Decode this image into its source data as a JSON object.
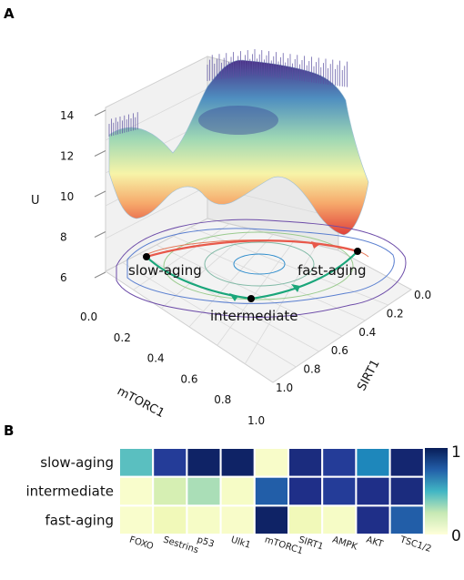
{
  "panel_a": {
    "letter": "A",
    "z_label": "U",
    "x_label": "mTORC1",
    "y_label": "SIRT1",
    "z_ticks": [
      "6",
      "8",
      "10",
      "12",
      "14"
    ],
    "x_ticks": [
      "0.0",
      "0.2",
      "0.4",
      "0.6",
      "0.8",
      "1.0"
    ],
    "y_ticks": [
      "0.0",
      "0.2",
      "0.4",
      "0.6",
      "0.8",
      "1.0"
    ],
    "states": [
      {
        "label": "slow-aging"
      },
      {
        "label": "intermediate"
      },
      {
        "label": "fast-aging"
      }
    ]
  },
  "panel_b": {
    "letter": "B",
    "colorbar_max": "1",
    "colorbar_min": "0"
  },
  "chart_data": [
    {
      "type": "surface",
      "title": "",
      "xlabel": "mTORC1",
      "ylabel": "SIRT1",
      "zlabel": "U",
      "xlim": [
        0.0,
        1.0
      ],
      "ylim": [
        0.0,
        1.0
      ],
      "zlim": [
        6,
        14
      ],
      "colormap": "YlGnBu",
      "states": [
        {
          "name": "slow-aging",
          "mTORC1": 0.0,
          "SIRT1": 1.0
        },
        {
          "name": "intermediate",
          "mTORC1": 1.0,
          "SIRT1": 1.0
        },
        {
          "name": "fast-aging",
          "mTORC1": 1.0,
          "SIRT1": 0.0
        }
      ]
    },
    {
      "type": "heatmap",
      "title": "",
      "rows": [
        "slow-aging",
        "intermediate",
        "fast-aging"
      ],
      "columns": [
        "FOXO",
        "Sestrins",
        "p53",
        "Ulk1",
        "mTORC1",
        "SIRT1",
        "AMPK",
        "AKT",
        "TSC1/2"
      ],
      "values": [
        [
          0.45,
          0.85,
          0.97,
          0.97,
          0.05,
          0.92,
          0.85,
          0.65,
          0.95
        ],
        [
          0.04,
          0.2,
          0.3,
          0.06,
          0.75,
          0.9,
          0.85,
          0.9,
          0.92
        ],
        [
          0.04,
          0.1,
          0.06,
          0.05,
          0.97,
          0.1,
          0.06,
          0.9,
          0.75
        ]
      ],
      "colormap": "YlGnBu",
      "vmin": 0,
      "vmax": 1
    }
  ]
}
